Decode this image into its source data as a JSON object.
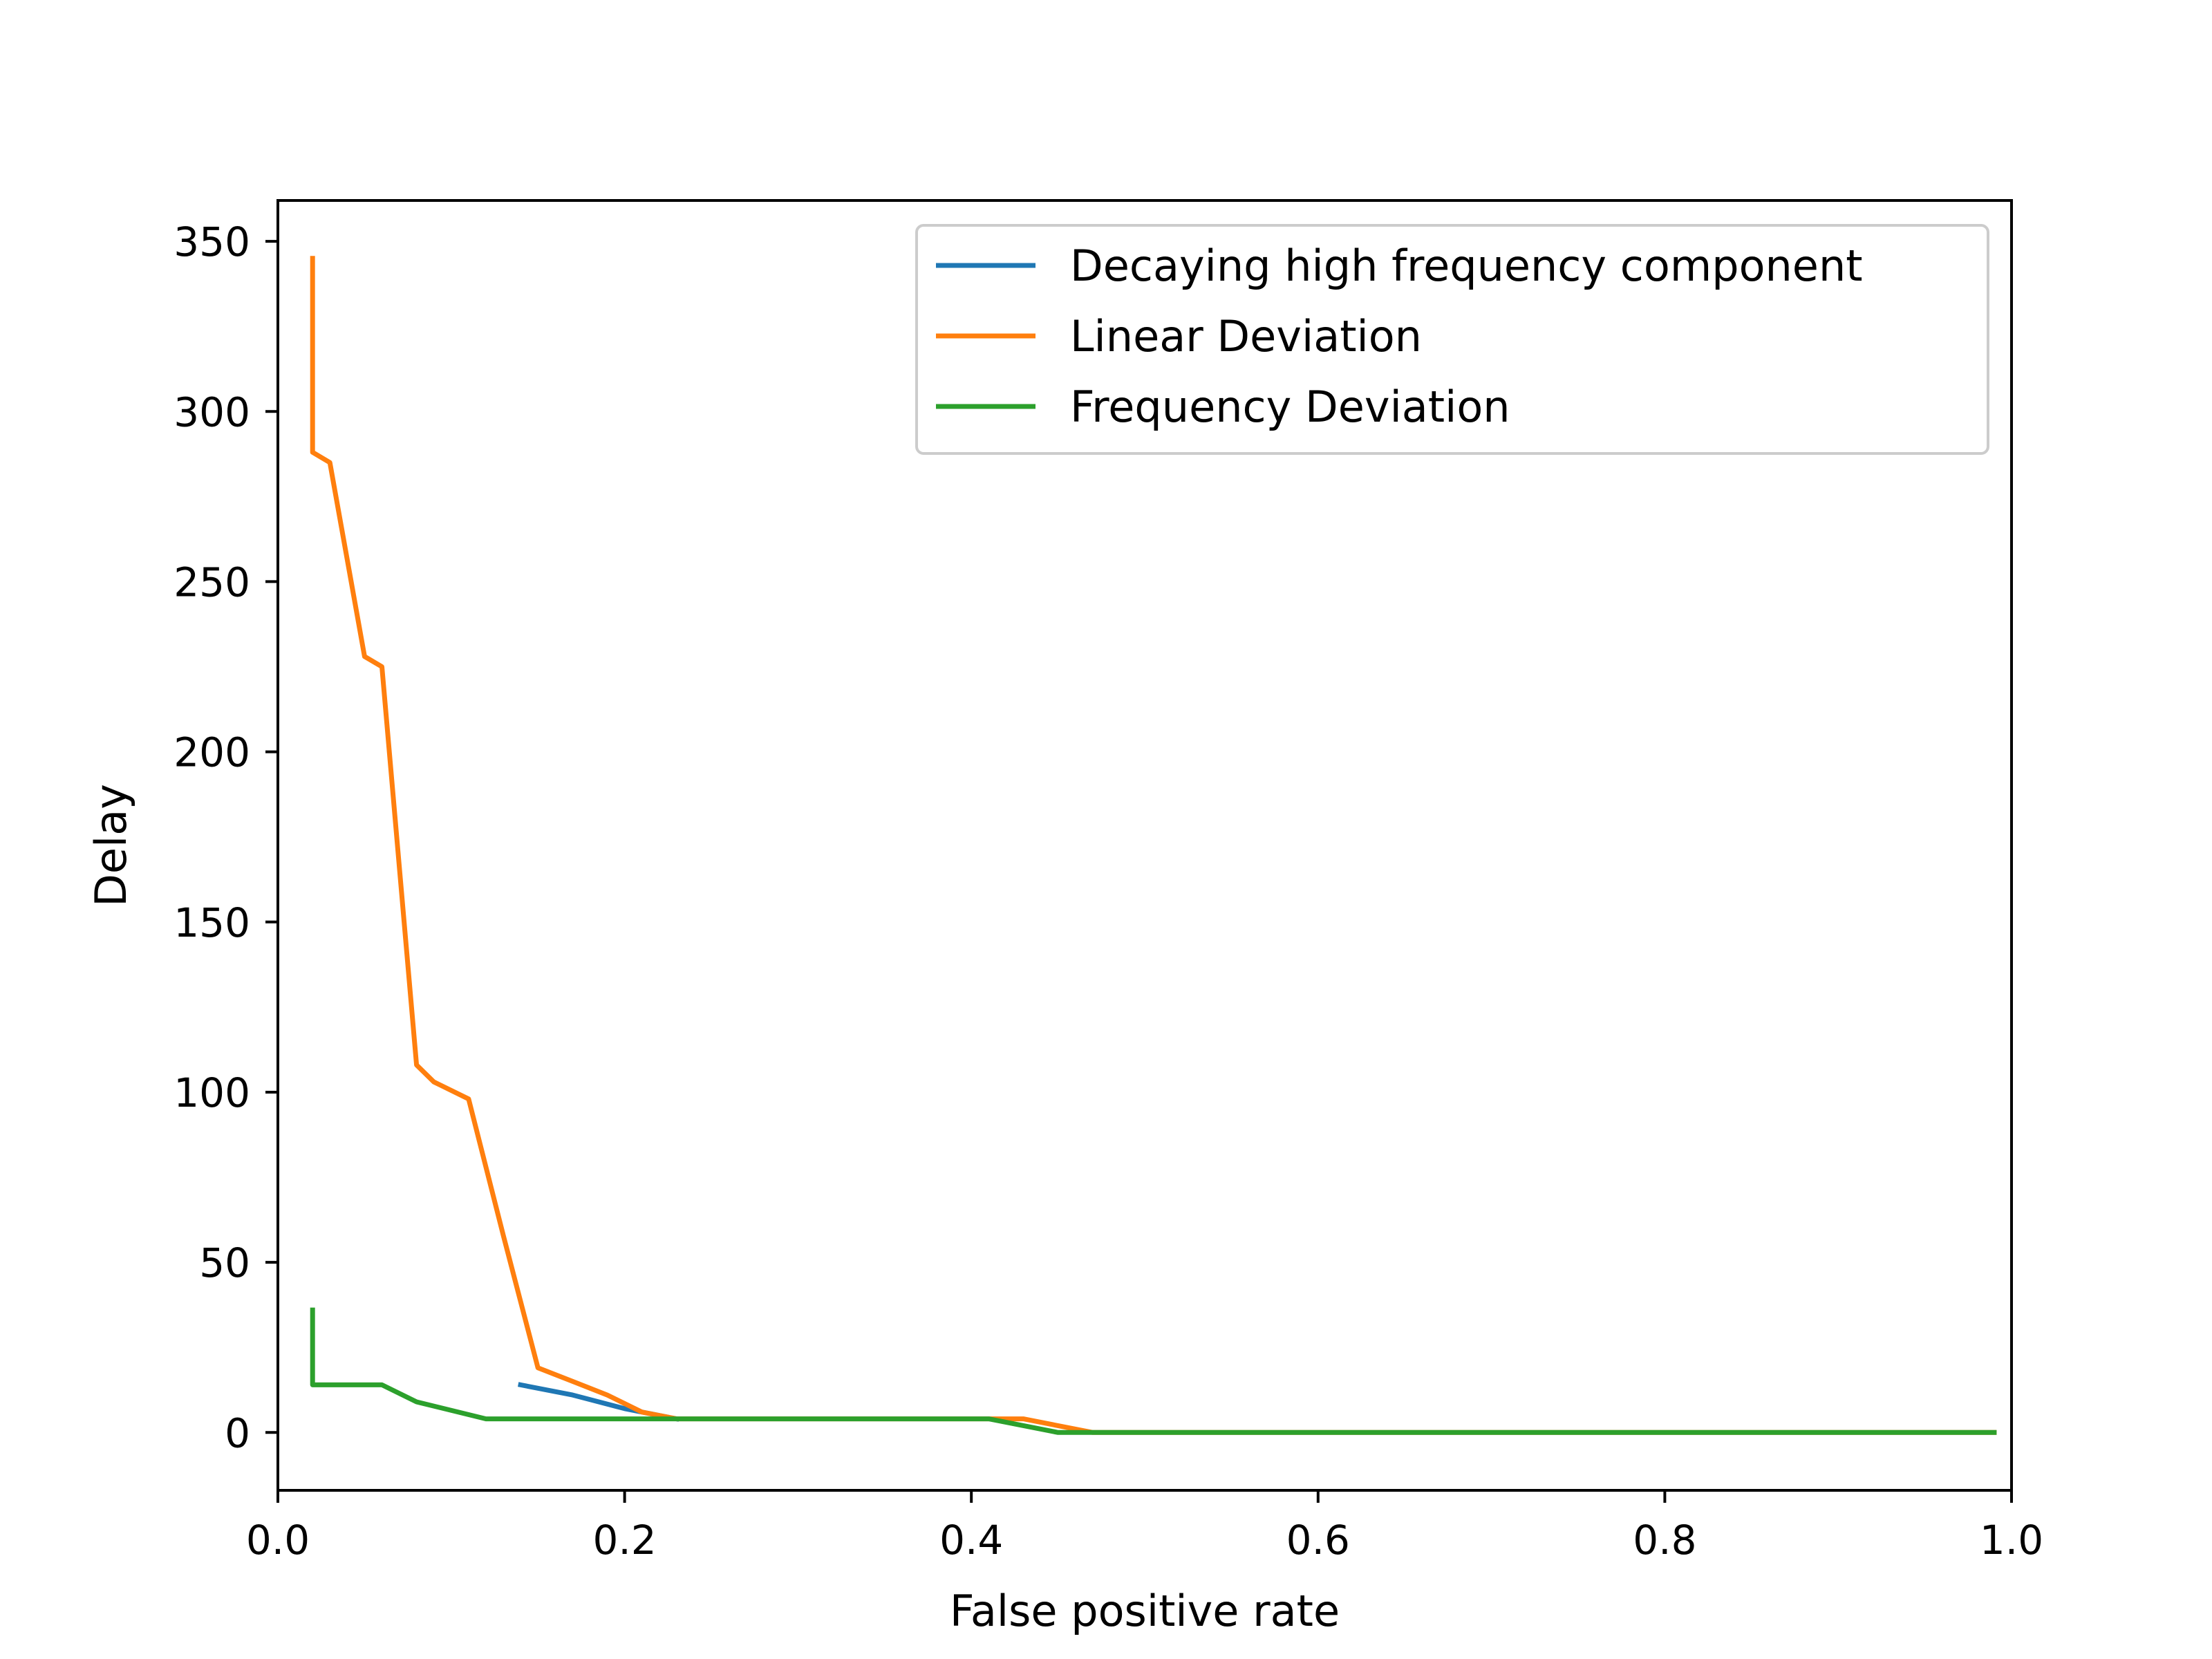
{
  "chart_data": {
    "type": "line",
    "title": "",
    "xlabel": "False positive rate",
    "ylabel": "Delay",
    "xlim": [
      0.0,
      1.0
    ],
    "ylim": [
      -17,
      362
    ],
    "xticks": [
      0.0,
      0.2,
      0.4,
      0.6,
      0.8,
      1.0
    ],
    "xtick_labels": [
      "0.0",
      "0.2",
      "0.4",
      "0.6",
      "0.8",
      "1.0"
    ],
    "yticks": [
      0,
      50,
      100,
      150,
      200,
      250,
      300,
      350
    ],
    "ytick_labels": [
      "0",
      "50",
      "100",
      "150",
      "200",
      "250",
      "300",
      "350"
    ],
    "grid": false,
    "legend_position": "top-right",
    "series": [
      {
        "name": "Decaying high frequency component",
        "color": "#1f77b4",
        "x": [
          0.14,
          0.17,
          0.2,
          0.23
        ],
        "y": [
          14,
          11,
          7,
          4
        ]
      },
      {
        "name": "Linear Deviation",
        "color": "#ff7f0e",
        "x": [
          0.02,
          0.02,
          0.03,
          0.05,
          0.06,
          0.08,
          0.09,
          0.11,
          0.13,
          0.15,
          0.17,
          0.19,
          0.21,
          0.23,
          0.43,
          0.47,
          0.99
        ],
        "y": [
          345,
          288,
          285,
          228,
          225,
          108,
          103,
          98,
          58,
          19,
          15,
          11,
          6,
          4,
          4,
          0,
          0
        ]
      },
      {
        "name": "Frequency Deviation",
        "color": "#2ca02c",
        "x": [
          0.02,
          0.02,
          0.06,
          0.08,
          0.12,
          0.41,
          0.45,
          0.99
        ],
        "y": [
          36,
          14,
          14,
          9,
          4,
          4,
          0,
          0
        ]
      }
    ]
  }
}
